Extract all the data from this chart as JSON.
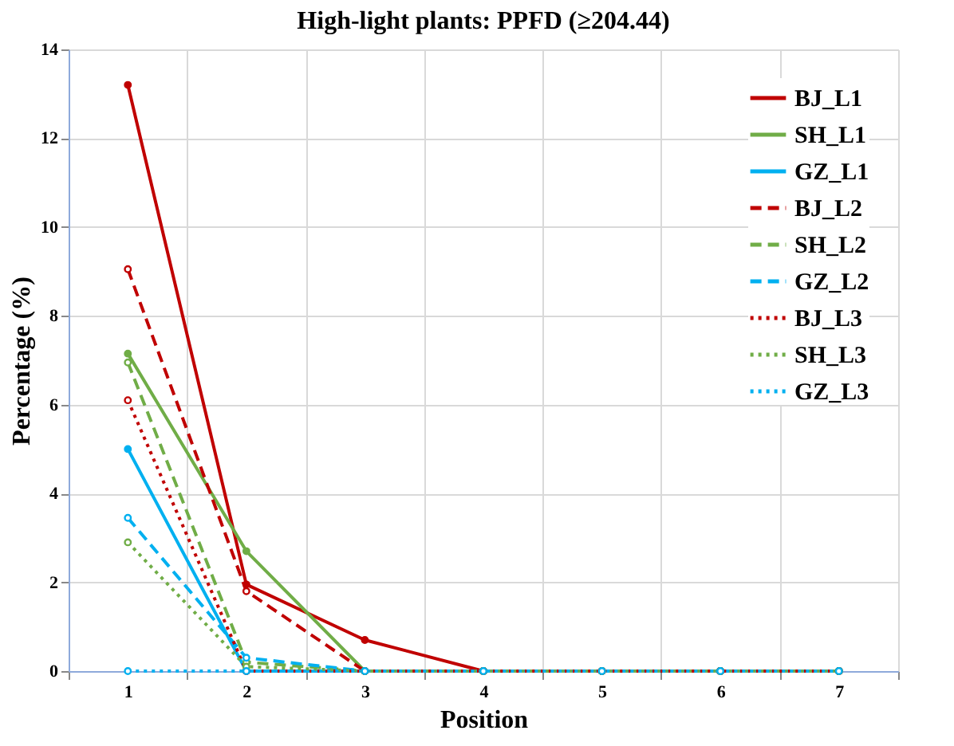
{
  "chart_data": {
    "type": "line",
    "title": "High-light plants: PPFD (≥204.44)",
    "xlabel": "Position",
    "ylabel": "Percentage (%)",
    "categories": [
      "1",
      "2",
      "3",
      "4",
      "5",
      "6",
      "7"
    ],
    "ylim": [
      0,
      14
    ],
    "yticks": [
      0,
      2,
      4,
      6,
      8,
      10,
      12,
      14
    ],
    "grid": true,
    "legend": "top right",
    "marker": "circle",
    "series": [
      {
        "name": "BJ_L1",
        "color": "#c00000",
        "line_style": "solid",
        "values": [
          13.2,
          1.95,
          0.7,
          0,
          0,
          0,
          0
        ]
      },
      {
        "name": "SH_L1",
        "color": "#70ad47",
        "line_style": "solid",
        "values": [
          7.15,
          2.7,
          0,
          0,
          0,
          0,
          0
        ]
      },
      {
        "name": "GZ_L1",
        "color": "#00b0f0",
        "line_style": "solid",
        "values": [
          5.0,
          0,
          0,
          0,
          0,
          0,
          0
        ]
      },
      {
        "name": "BJ_L2",
        "color": "#c00000",
        "line_style": "dashed",
        "values": [
          9.05,
          1.8,
          0,
          0,
          0,
          0,
          0
        ]
      },
      {
        "name": "SH_L2",
        "color": "#70ad47",
        "line_style": "dashed",
        "values": [
          6.95,
          0.2,
          0,
          0,
          0,
          0,
          0
        ]
      },
      {
        "name": "GZ_L2",
        "color": "#00b0f0",
        "line_style": "dashed",
        "values": [
          3.45,
          0.3,
          0,
          0,
          0,
          0,
          0
        ]
      },
      {
        "name": "BJ_L3",
        "color": "#c00000",
        "line_style": "dotted",
        "values": [
          6.1,
          0,
          0,
          0,
          0,
          0,
          0
        ]
      },
      {
        "name": "SH_L3",
        "color": "#70ad47",
        "line_style": "dotted",
        "values": [
          2.9,
          0.1,
          0,
          0,
          0,
          0,
          0
        ]
      },
      {
        "name": "GZ_L3",
        "color": "#00b0f0",
        "line_style": "dotted",
        "values": [
          0,
          0,
          0,
          0,
          0,
          0,
          0
        ]
      }
    ]
  }
}
